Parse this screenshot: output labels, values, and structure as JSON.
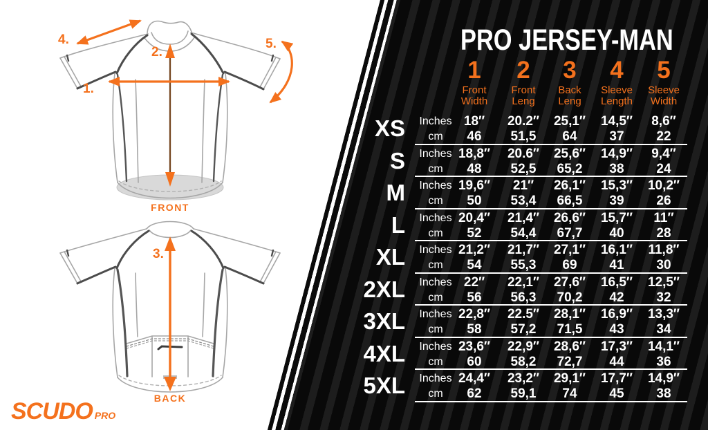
{
  "brand": {
    "name": "SCUDO",
    "suffix": "PRO"
  },
  "diagram": {
    "front_label": "FRONT",
    "back_label": "BACK",
    "markers": {
      "m1": "1.",
      "m2": "2.",
      "m3": "3.",
      "m4": "4.",
      "m5": "5."
    }
  },
  "table": {
    "title": "PRO JERSEY-MAN",
    "columns": [
      {
        "num": "1",
        "label1": "Front",
        "label2": "Width"
      },
      {
        "num": "2",
        "label1": "Front",
        "label2": "Leng"
      },
      {
        "num": "3",
        "label1": "Back",
        "label2": "Leng"
      },
      {
        "num": "4",
        "label1": "Sleeve",
        "label2": "Length"
      },
      {
        "num": "5",
        "label1": "Sleeve",
        "label2": "Width"
      }
    ],
    "unit_labels": {
      "inches": "Inches",
      "cm": "cm"
    },
    "rows": [
      {
        "size": "XS",
        "inches": [
          "18″",
          "20.2″",
          "25,1″",
          "14,5″",
          "8,6″"
        ],
        "cm": [
          "46",
          "51,5",
          "64",
          "37",
          "22"
        ]
      },
      {
        "size": "S",
        "inches": [
          "18,8″",
          "20.6″",
          "25,6″",
          "14,9″",
          "9,4″"
        ],
        "cm": [
          "48",
          "52,5",
          "65,2",
          "38",
          "24"
        ]
      },
      {
        "size": "M",
        "inches": [
          "19,6″",
          "21″",
          "26,1″",
          "15,3″",
          "10,2″"
        ],
        "cm": [
          "50",
          "53,4",
          "66,5",
          "39",
          "26"
        ]
      },
      {
        "size": "L",
        "inches": [
          "20,4″",
          "21,4″",
          "26,6″",
          "15,7″",
          "11″"
        ],
        "cm": [
          "52",
          "54,4",
          "67,7",
          "40",
          "28"
        ]
      },
      {
        "size": "XL",
        "inches": [
          "21,2″",
          "21,7″",
          "27,1″",
          "16,1″",
          "11,8″"
        ],
        "cm": [
          "54",
          "55,3",
          "69",
          "41",
          "30"
        ]
      },
      {
        "size": "2XL",
        "inches": [
          "22″",
          "22,1″",
          "27,6″",
          "16,5″",
          "12,5″"
        ],
        "cm": [
          "56",
          "56,3",
          "70,2",
          "42",
          "32"
        ]
      },
      {
        "size": "3XL",
        "inches": [
          "22,8″",
          "22.5″",
          "28,1″",
          "16,9″",
          "13,3″"
        ],
        "cm": [
          "58",
          "57,2",
          "71,5",
          "43",
          "34"
        ]
      },
      {
        "size": "4XL",
        "inches": [
          "23,6″",
          "22,9″",
          "28,6″",
          "17,3″",
          "14,1″"
        ],
        "cm": [
          "60",
          "58,2",
          "72,7",
          "44",
          "36"
        ]
      },
      {
        "size": "5XL",
        "inches": [
          "24,4″",
          "23,2″",
          "29,1″",
          "17,7″",
          "14,9″"
        ],
        "cm": [
          "62",
          "59,1",
          "74",
          "45",
          "38"
        ]
      }
    ]
  },
  "colors": {
    "accent": "#f4711d",
    "panel_bg": "#0b0b0b",
    "panel_stripe": "#1d1d1d",
    "text": "#ffffff"
  }
}
